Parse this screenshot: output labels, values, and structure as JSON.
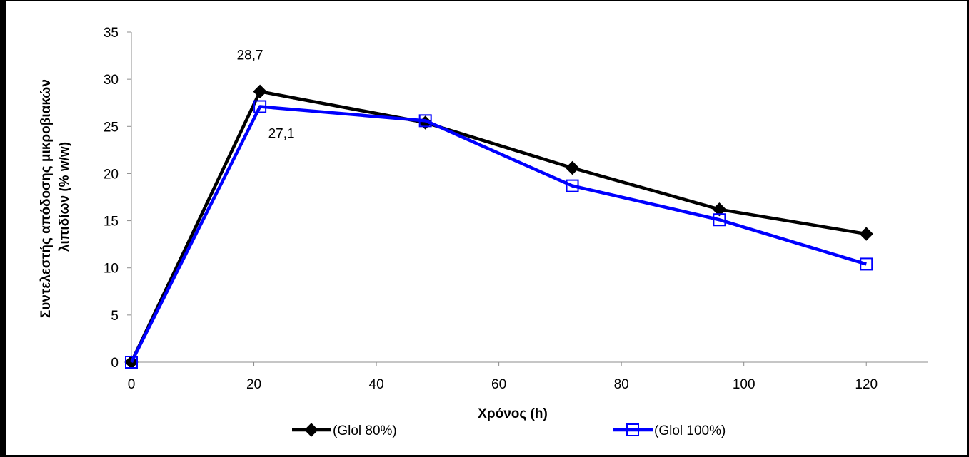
{
  "chart_data": {
    "type": "line",
    "title": "",
    "xlabel": "Χρόνος (h)",
    "ylabel_line1": "Συντελεστής απόδοσης μικροβιακών",
    "ylabel_line2": "λιπιδίων (% w/w)",
    "xlim": [
      0,
      130
    ],
    "ylim": [
      0,
      35
    ],
    "xticks": [
      0,
      20,
      40,
      60,
      80,
      100,
      120
    ],
    "yticks": [
      0,
      5,
      10,
      15,
      20,
      25,
      30,
      35
    ],
    "grid": false,
    "legend_position": "bottom",
    "series": [
      {
        "name": "(Glol 80%)",
        "color": "#000000",
        "marker": "diamond",
        "x": [
          0,
          21,
          48,
          72,
          96,
          120
        ],
        "y": [
          0,
          28.7,
          25.4,
          20.6,
          16.2,
          13.6
        ]
      },
      {
        "name": "(Glol 100%)",
        "color": "#0000ff",
        "marker": "square-open",
        "x": [
          0,
          21,
          48,
          72,
          96,
          120
        ],
        "y": [
          0,
          27.1,
          25.6,
          18.7,
          15.1,
          10.4
        ]
      }
    ],
    "annotations": [
      {
        "text": "28,7",
        "x": 21,
        "y": 28.7,
        "series": 0
      },
      {
        "text": "27,1",
        "x": 21,
        "y": 27.1,
        "series": 1
      }
    ]
  }
}
